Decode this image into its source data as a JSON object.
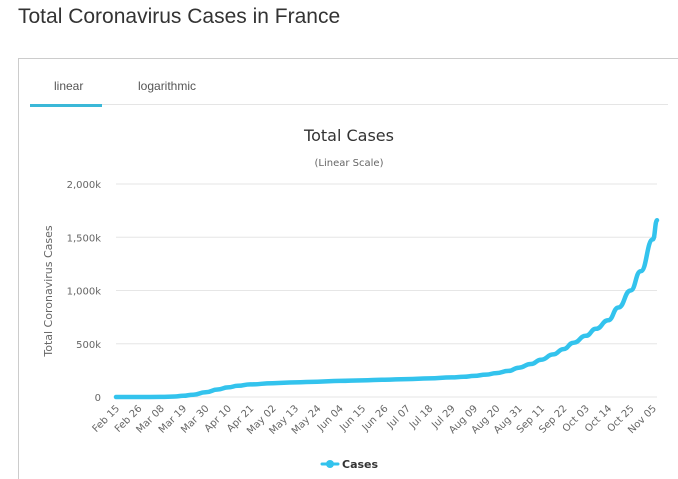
{
  "page": {
    "title": "Total Coronavirus Cases in France"
  },
  "tabs": [
    {
      "label": "linear",
      "active": true
    },
    {
      "label": "logarithmic",
      "active": false
    }
  ],
  "colors": {
    "accent": "#3bb8d8",
    "series": "#33c3ed"
  },
  "chart_data": {
    "type": "line",
    "title": "Total Cases",
    "subtitle": "(Linear Scale)",
    "xlabel": "",
    "ylabel": "Total Coronavirus Cases",
    "ylim": [
      0,
      2000000
    ],
    "yticks": [
      0,
      500000,
      1000000,
      1500000,
      2000000
    ],
    "ytick_labels": [
      "0",
      "500k",
      "1,000k",
      "1,500k",
      "2,000k"
    ],
    "grid": true,
    "legend_position": "bottom-center",
    "x_tick_labels": [
      "Feb 15",
      "Feb 26",
      "Mar 08",
      "Mar 19",
      "Mar 30",
      "Apr 10",
      "Apr 21",
      "May 02",
      "May 13",
      "May 24",
      "Jun 04",
      "Jun 15",
      "Jun 26",
      "Jul 07",
      "Jul 18",
      "Jul 29",
      "Aug 09",
      "Aug 20",
      "Aug 31",
      "Sep 11",
      "Sep 22",
      "Oct 03",
      "Oct 14",
      "Oct 25",
      "Nov 05"
    ],
    "series": [
      {
        "name": "Cases",
        "x": [
          "Feb 15",
          "Feb 26",
          "Mar 08",
          "Mar 15",
          "Mar 19",
          "Mar 24",
          "Mar 30",
          "Apr 05",
          "Apr 10",
          "Apr 15",
          "Apr 21",
          "May 02",
          "May 13",
          "May 24",
          "Jun 04",
          "Jun 15",
          "Jun 26",
          "Jul 07",
          "Jul 18",
          "Jul 29",
          "Aug 04",
          "Aug 09",
          "Aug 15",
          "Aug 20",
          "Aug 26",
          "Aug 31",
          "Sep 06",
          "Sep 11",
          "Sep 17",
          "Sep 22",
          "Sep 27",
          "Oct 03",
          "Oct 08",
          "Oct 14",
          "Oct 19",
          "Oct 25",
          "Oct 30",
          "Nov 05",
          "Nov 07"
        ],
        "values": [
          12,
          18,
          1100,
          4500,
          11000,
          22000,
          44000,
          70000,
          90000,
          105000,
          118000,
          130000,
          137000,
          144000,
          151000,
          156000,
          162000,
          168000,
          175000,
          184000,
          190000,
          198000,
          210000,
          224000,
          245000,
          275000,
          310000,
          350000,
          400000,
          450000,
          510000,
          575000,
          640000,
          720000,
          840000,
          1000000,
          1180000,
          1480000,
          1660000
        ]
      }
    ]
  }
}
